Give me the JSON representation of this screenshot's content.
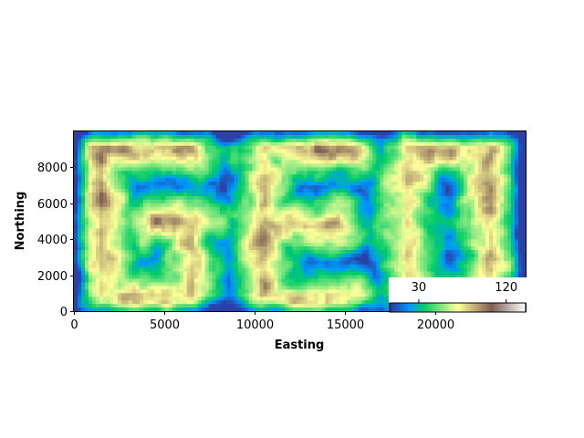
{
  "chart_data": {
    "type": "heatmap",
    "xlabel": "Easting",
    "ylabel": "Northing",
    "xlim": [
      0,
      25000
    ],
    "ylim": [
      0,
      10000
    ],
    "x_ticks": [
      0,
      5000,
      10000,
      15000,
      20000
    ],
    "y_ticks": [
      0,
      2000,
      4000,
      6000,
      8000
    ],
    "x_tick_labels": [
      "0",
      "5000",
      "10000",
      "15000",
      "20000"
    ],
    "y_tick_labels": [
      "0",
      "2000",
      "4000",
      "6000",
      "8000"
    ],
    "grid": false,
    "colormap": "terrain",
    "colorbar": {
      "placement": "inset lower-right",
      "orientation": "horizontal",
      "tick_values": [
        30,
        120
      ],
      "tick_labels": [
        "30",
        "120"
      ],
      "range": [
        0,
        140
      ]
    }
  }
}
